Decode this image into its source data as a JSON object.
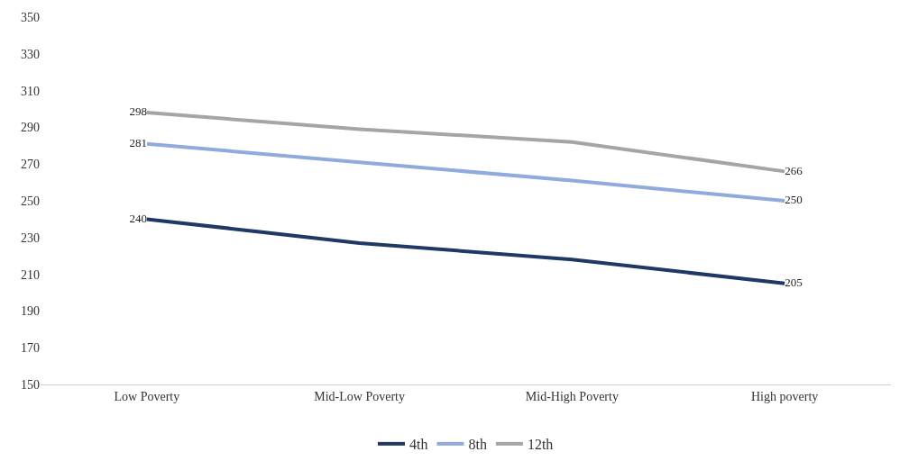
{
  "chart_data": {
    "type": "line",
    "categories": [
      "Low Poverty",
      "Mid-Low Poverty",
      "Mid-High Poverty",
      "High poverty"
    ],
    "series": [
      {
        "name": "4th",
        "color": "#1f3864",
        "values": [
          240,
          227,
          218,
          205
        ],
        "value_labels": [
          "240",
          null,
          null,
          "205"
        ]
      },
      {
        "name": "8th",
        "color": "#8faadc",
        "values": [
          281,
          271,
          261,
          250
        ],
        "value_labels": [
          "281",
          null,
          null,
          "250"
        ]
      },
      {
        "name": "12th",
        "color": "#a5a5a5",
        "values": [
          298,
          289,
          282,
          266
        ],
        "value_labels": [
          "298",
          null,
          null,
          "266"
        ]
      }
    ],
    "ylim": [
      150,
      350
    ],
    "yticks": [
      150,
      170,
      190,
      210,
      230,
      250,
      270,
      290,
      310,
      330,
      350
    ],
    "grid": false,
    "legend": "bottom",
    "marker": "none",
    "line_style": "solid"
  }
}
